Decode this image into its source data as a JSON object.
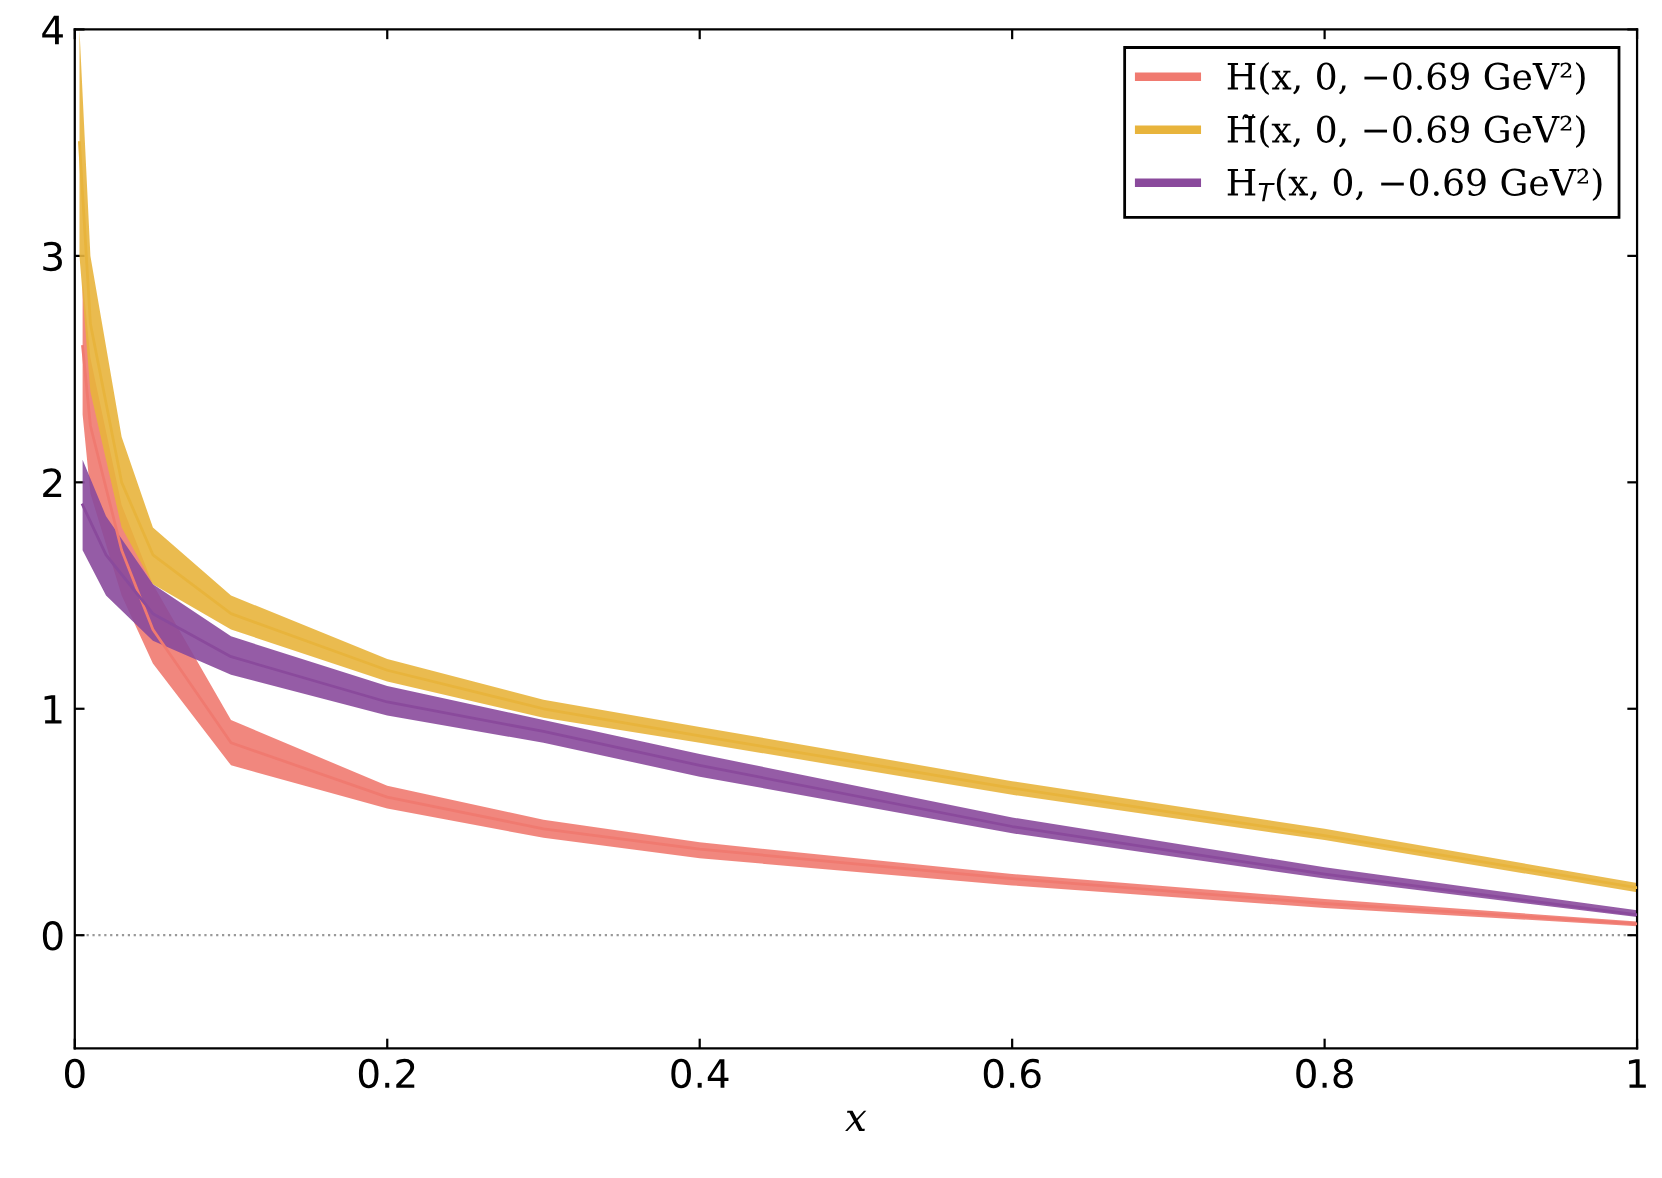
{
  "chart_data": {
    "type": "line",
    "xlabel": "x",
    "xlim": [
      0,
      1
    ],
    "ylim": [
      -0.5,
      4
    ],
    "xticks": [
      0,
      0.2,
      0.4,
      0.6,
      0.8,
      1
    ],
    "yticks": [
      0,
      1,
      2,
      3,
      4
    ],
    "grid": false,
    "legend": "top right",
    "marker": "none",
    "ref_lines": [
      {
        "axis": "y",
        "value": 0,
        "color": "#999999",
        "line_style": "dotted"
      }
    ],
    "series": [
      {
        "name": "H(x, 0, −0.69 GeV²)",
        "color": "#f07a70",
        "x": [
          0.005,
          0.01,
          0.03,
          0.05,
          0.1,
          0.2,
          0.3,
          0.4,
          0.6,
          0.8,
          1
        ],
        "values": [
          2.6,
          2.25,
          1.7,
          1.35,
          0.85,
          0.61,
          0.47,
          0.38,
          0.25,
          0.14,
          0.05
        ],
        "lower": [
          2.3,
          1.95,
          1.5,
          1.2,
          0.75,
          0.56,
          0.43,
          0.34,
          0.22,
          0.12,
          0.04
        ],
        "upper": [
          2.9,
          2.55,
          1.9,
          1.55,
          0.95,
          0.66,
          0.51,
          0.41,
          0.27,
          0.16,
          0.06
        ]
      },
      {
        "name": "H̃(x, 0, −0.69 GeV²)",
        "color": "#e8b43c",
        "x": [
          0.003,
          0.01,
          0.03,
          0.05,
          0.1,
          0.2,
          0.3,
          0.4,
          0.6,
          0.8,
          1
        ],
        "values": [
          3.5,
          2.7,
          2.0,
          1.68,
          1.42,
          1.17,
          1.0,
          0.88,
          0.65,
          0.44,
          0.21
        ],
        "lower": [
          3.0,
          2.4,
          1.8,
          1.55,
          1.35,
          1.12,
          0.96,
          0.85,
          0.62,
          0.42,
          0.19
        ],
        "upper": [
          4.0,
          3.0,
          2.2,
          1.8,
          1.5,
          1.22,
          1.04,
          0.92,
          0.68,
          0.47,
          0.23
        ]
      },
      {
        "name": "H$_{T}$(x, 0, −0.69 GeV²)",
        "color": "#8a4a9c",
        "x": [
          0.005,
          0.02,
          0.05,
          0.1,
          0.2,
          0.3,
          0.4,
          0.6,
          0.8,
          1
        ],
        "values": [
          1.9,
          1.68,
          1.42,
          1.23,
          1.03,
          0.9,
          0.75,
          0.48,
          0.27,
          0.09
        ],
        "lower": [
          1.7,
          1.5,
          1.3,
          1.15,
          0.97,
          0.85,
          0.7,
          0.45,
          0.25,
          0.08
        ],
        "upper": [
          2.1,
          1.85,
          1.55,
          1.32,
          1.1,
          0.95,
          0.8,
          0.52,
          0.3,
          0.11
        ]
      }
    ]
  }
}
